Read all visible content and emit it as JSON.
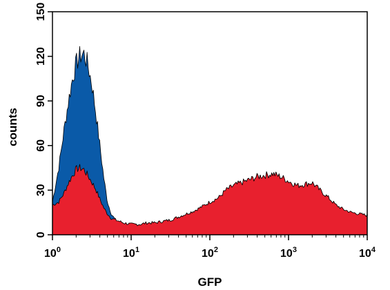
{
  "chart_data": {
    "type": "area",
    "title": "",
    "xlabel": "GFP",
    "ylabel": "counts",
    "xscale": "log",
    "xlim": [
      1,
      10000
    ],
    "ylim": [
      0,
      150
    ],
    "grid": false,
    "legend": "none",
    "x_ticks": [
      {
        "value": 1,
        "base": "10",
        "exp": "0"
      },
      {
        "value": 10,
        "base": "10",
        "exp": "1"
      },
      {
        "value": 100,
        "base": "10",
        "exp": "2"
      },
      {
        "value": 1000,
        "base": "10",
        "exp": "3"
      },
      {
        "value": 10000,
        "base": "10",
        "exp": "4"
      }
    ],
    "y_ticks": [
      {
        "value": 0,
        "label": "0"
      },
      {
        "value": 30,
        "label": "30"
      },
      {
        "value": 60,
        "label": "60"
      },
      {
        "value": 90,
        "label": "90"
      },
      {
        "value": 120,
        "label": "120"
      },
      {
        "value": 150,
        "label": "150"
      }
    ],
    "x": [
      1.0,
      1.2,
      1.4,
      1.6,
      1.8,
      2.0,
      2.2,
      2.5,
      2.8,
      3.2,
      3.6,
      4.0,
      4.5,
      5.0,
      5.6,
      6.3,
      7.1,
      8.0,
      10,
      13,
      16,
      20,
      25,
      32,
      40,
      50,
      63,
      80,
      100,
      130,
      160,
      200,
      250,
      320,
      400,
      500,
      630,
      800,
      1000,
      1300,
      1600,
      2000,
      2500,
      3200,
      4000,
      5000,
      6300,
      8000,
      10000
    ],
    "series": [
      {
        "color": "#0a5aa8",
        "values": [
          22,
          45,
          70,
          90,
          105,
          115,
          120,
          122,
          115,
          100,
          80,
          60,
          38,
          22,
          14,
          10,
          9,
          8,
          7,
          7,
          8,
          8,
          9,
          10,
          12,
          14,
          16,
          19,
          22,
          25,
          30,
          33,
          35,
          37,
          39,
          40,
          41,
          39,
          36,
          33,
          34,
          35,
          30,
          25,
          20,
          17,
          15,
          14,
          13
        ]
      },
      {
        "color": "#e8202e",
        "values": [
          20,
          22,
          28,
          35,
          40,
          44,
          45,
          44,
          40,
          35,
          30,
          24,
          18,
          14,
          11,
          10,
          9,
          8,
          7,
          7,
          8,
          8,
          9,
          10,
          12,
          14,
          16,
          19,
          22,
          25,
          30,
          33,
          35,
          37,
          39,
          40,
          41,
          39,
          36,
          33,
          34,
          35,
          30,
          25,
          20,
          17,
          15,
          14,
          13
        ]
      }
    ]
  }
}
